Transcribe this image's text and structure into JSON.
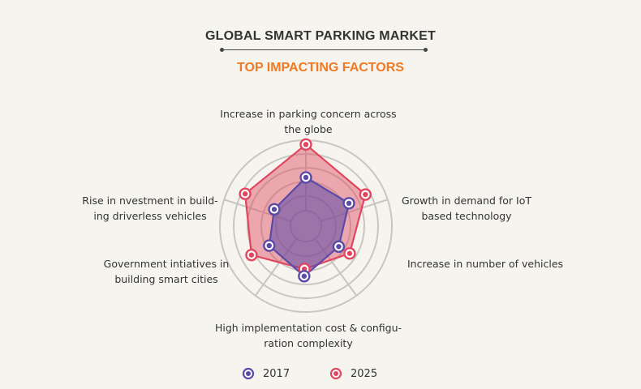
{
  "header": {
    "title": "GLOBAL SMART PARKING MARKET",
    "subtitle": "TOP IMPACTING FACTORS"
  },
  "colors": {
    "title": "#333333",
    "subtitle": "#f07a23",
    "series_2017": "#5b4aa8",
    "series_2025": "#e0475f",
    "grid": "#c8c6c0",
    "background": "#f6f4ee"
  },
  "labels": {
    "top_line1": "Increase in parking concern across",
    "top_line2": "the globe",
    "upper_right_line1": "Growth in demand for IoT",
    "upper_right_line2": "based technology",
    "lower_right": "Increase in number of vehicles",
    "bottom_line1": "High implementation cost & configu-",
    "bottom_line2": "ration complexity",
    "lower_left_line1": "Government intiatives in",
    "lower_left_line2": "building smart cities",
    "upper_left_line1": "Rise in nvestment in build-",
    "upper_left_line2": "ing driverless vehicles"
  },
  "legend": [
    {
      "label": "2017",
      "color": "#5b4aa8"
    },
    {
      "label": "2025",
      "color": "#e0475f"
    }
  ],
  "chart_data": {
    "type": "radar",
    "title": "GLOBAL SMART PARKING MARKET",
    "subtitle": "TOP IMPACTING FACTORS",
    "categories": [
      "Increase in parking concern across the globe",
      "Growth in demand for IoT based technology",
      "Increase in number of vehicles",
      "High implementation cost & configuration complexity",
      "Government intiatives in building smart cities",
      "Rise in nvestment in building driverless vehicles"
    ],
    "series": [
      {
        "name": "2017",
        "values": [
          3.4,
          3.4,
          2.7,
          3.5,
          2.9,
          2.5
        ]
      },
      {
        "name": "2025",
        "values": [
          5.7,
          4.7,
          3.6,
          3.0,
          4.3,
          4.8
        ]
      }
    ],
    "scale_max": 6,
    "rings": 6,
    "legend_position": "bottom",
    "tick_labels_shown": false
  }
}
